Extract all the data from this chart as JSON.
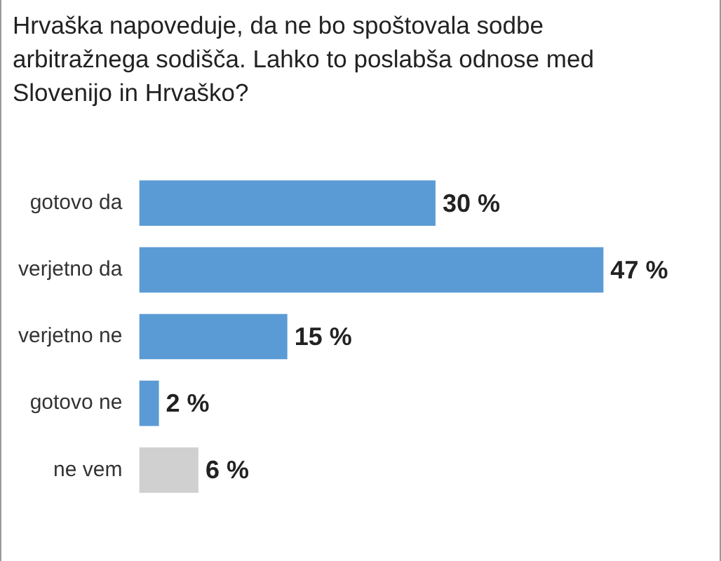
{
  "chart_data": {
    "type": "bar",
    "orientation": "horizontal",
    "title": "Hrvaška napoveduje, da ne bo spoštovala sodbe arbitražnega sodišča. Lahko to poslabša odnose med Slovenijo in Hrvaško?",
    "categories": [
      "gotovo da",
      "verjetno da",
      "verjetno ne",
      "gotovo ne",
      "ne vem"
    ],
    "values": [
      30,
      47,
      15,
      2,
      6
    ],
    "colors": [
      "#5b9bd5",
      "#5b9bd5",
      "#5b9bd5",
      "#5b9bd5",
      "#d0d0d0"
    ],
    "value_labels": [
      "30 %",
      "47 %",
      "15 %",
      "2 %",
      "6 %"
    ],
    "grid": false,
    "legend": false
  }
}
